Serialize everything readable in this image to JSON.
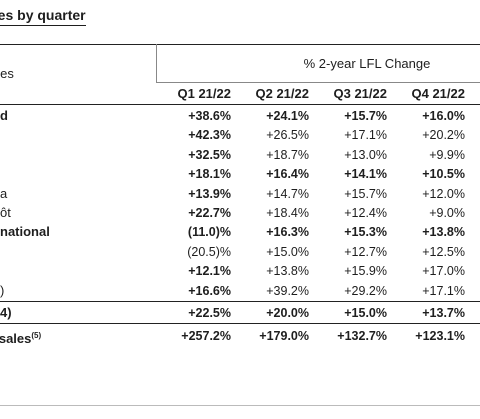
{
  "title": "ales by quarter",
  "column_group": "% 2-year LFL Change",
  "row_header": "ales",
  "quarters": [
    "Q1 21/22",
    "Q2 21/22",
    "Q3 21/22",
    "Q4 21/22"
  ],
  "rows": [
    {
      "label": "d",
      "bold_label": true,
      "values": [
        "+38.6%",
        "+24.1%",
        "+15.7%",
        "+16.0%"
      ],
      "bold": [
        true,
        true,
        true,
        true
      ]
    },
    {
      "label": "",
      "bold_label": false,
      "values": [
        "+42.3%",
        "+26.5%",
        "+17.1%",
        "+20.2%"
      ],
      "bold": [
        true,
        false,
        false,
        false
      ]
    },
    {
      "label": "",
      "bold_label": false,
      "values": [
        "+32.5%",
        "+18.7%",
        "+13.0%",
        "+9.9%"
      ],
      "bold": [
        true,
        false,
        false,
        false
      ]
    },
    {
      "label": "",
      "bold_label": false,
      "values": [
        "+18.1%",
        "+16.4%",
        "+14.1%",
        "+10.5%"
      ],
      "bold": [
        true,
        true,
        true,
        true
      ]
    },
    {
      "label": "a",
      "bold_label": false,
      "values": [
        "+13.9%",
        "+14.7%",
        "+15.7%",
        "+12.0%"
      ],
      "bold": [
        true,
        false,
        false,
        false
      ]
    },
    {
      "label": "ôt",
      "bold_label": false,
      "values": [
        "+22.7%",
        "+18.4%",
        "+12.4%",
        "+9.0%"
      ],
      "bold": [
        true,
        false,
        false,
        false
      ]
    },
    {
      "label": "national",
      "bold_label": true,
      "values": [
        "(11.0)%",
        "+16.3%",
        "+15.3%",
        "+13.8%"
      ],
      "bold": [
        true,
        true,
        true,
        true
      ]
    },
    {
      "label": "",
      "bold_label": false,
      "values": [
        "(20.5)%",
        "+15.0%",
        "+12.7%",
        "+12.5%"
      ],
      "bold": [
        false,
        false,
        false,
        false
      ]
    },
    {
      "label": "",
      "bold_label": false,
      "values": [
        "+12.1%",
        "+13.8%",
        "+15.9%",
        "+17.0%"
      ],
      "bold": [
        true,
        false,
        false,
        false
      ]
    },
    {
      "label": ")",
      "bold_label": false,
      "values": [
        "+16.6%",
        "+39.2%",
        "+29.2%",
        "+17.1%"
      ],
      "bold": [
        true,
        false,
        false,
        false
      ]
    }
  ],
  "total_row": {
    "label": "4)",
    "values": [
      "+22.5%",
      "+20.0%",
      "+15.0%",
      "+13.7%"
    ]
  },
  "ecom_row": {
    "label": "e sales",
    "label_sup": "(5)",
    "values": [
      "+257.2%",
      "+179.0%",
      "+132.7%",
      "+123.1%"
    ]
  }
}
